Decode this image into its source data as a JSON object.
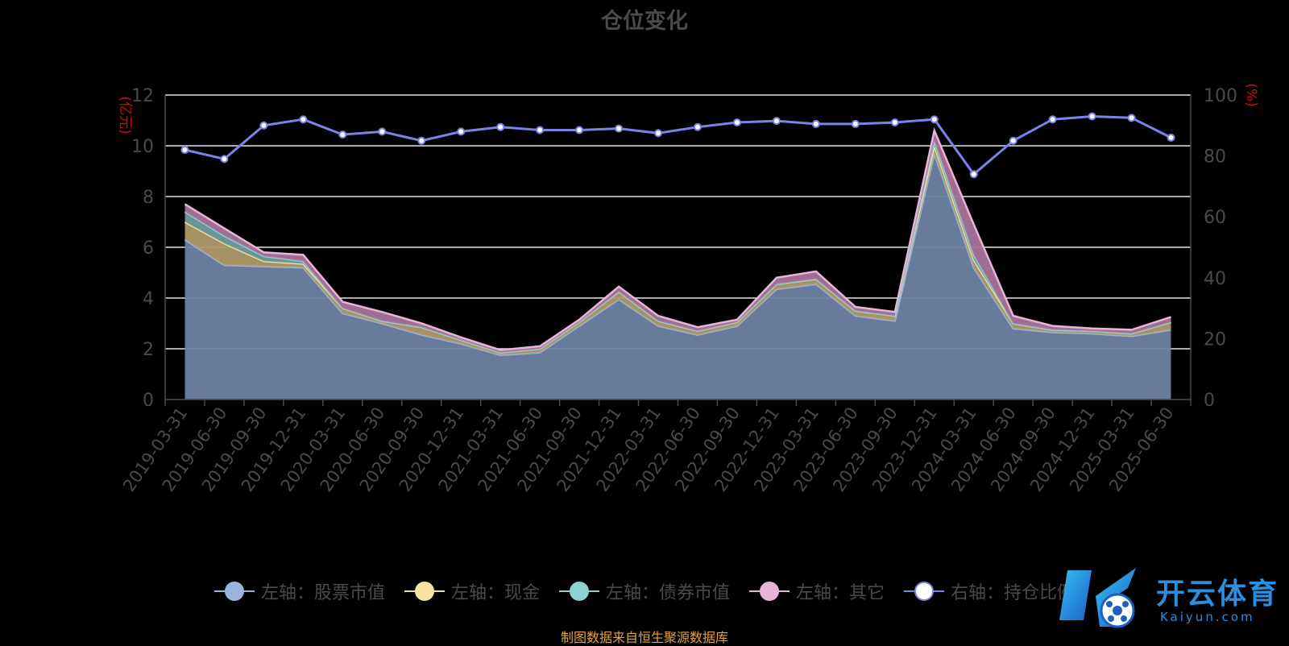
{
  "title": "仓位变化",
  "source_note": "制图数据来自恒生聚源数据库",
  "watermark": {
    "text": "开云体育",
    "sub": "Kaiyun.com",
    "logo": "K"
  },
  "chart_data": {
    "type": "area",
    "x": [
      "2019-03-31",
      "2019-06-30",
      "2019-09-30",
      "2019-12-31",
      "2020-03-31",
      "2020-06-30",
      "2020-09-30",
      "2020-12-31",
      "2021-03-31",
      "2021-06-30",
      "2021-09-30",
      "2021-12-31",
      "2022-03-31",
      "2022-06-30",
      "2022-09-30",
      "2022-12-31",
      "2023-03-31",
      "2023-06-30",
      "2023-09-30",
      "2023-12-31",
      "2024-03-31",
      "2024-06-30",
      "2024-09-30",
      "2024-12-31",
      "2025-03-31",
      "2025-06-30"
    ],
    "left_axis": {
      "label": "(亿元)",
      "ylim": [
        0,
        12
      ],
      "ticks": [
        0,
        2,
        4,
        6,
        8,
        10,
        12
      ]
    },
    "right_axis": {
      "label": "(%)",
      "ylim": [
        0,
        100
      ],
      "ticks": [
        0,
        20,
        40,
        60,
        80,
        100
      ]
    },
    "series": [
      {
        "name": "左轴：股票市值",
        "axis": "left",
        "stacked": true,
        "color": "#9ab4dc",
        "fill": "#6f82a3",
        "values": [
          6.3,
          5.3,
          5.25,
          5.2,
          3.4,
          3.0,
          2.55,
          2.2,
          1.75,
          1.85,
          2.9,
          3.95,
          2.9,
          2.55,
          2.9,
          4.35,
          4.55,
          3.3,
          3.1,
          9.7,
          5.2,
          2.8,
          2.65,
          2.6,
          2.5,
          2.75
        ]
      },
      {
        "name": "左轴：现金",
        "axis": "left",
        "stacked": true,
        "color": "#f4e3a3",
        "fill": "#b09a6a",
        "values": [
          0.7,
          0.85,
          0.2,
          0.15,
          0.2,
          0.1,
          0.3,
          0.15,
          0.1,
          0.15,
          0.15,
          0.3,
          0.2,
          0.15,
          0.15,
          0.2,
          0.2,
          0.2,
          0.2,
          0.3,
          0.3,
          0.2,
          0.1,
          0.1,
          0.1,
          0.3
        ]
      },
      {
        "name": "左轴：债券市值",
        "axis": "left",
        "stacked": true,
        "color": "#8fd0d0",
        "fill": "#6e9c9e",
        "values": [
          0.4,
          0.3,
          0.2,
          0.1,
          0.0,
          0.0,
          0.0,
          0.0,
          0.0,
          0.0,
          0.0,
          0.0,
          0.0,
          0.0,
          0.0,
          0.0,
          0.0,
          0.0,
          0.0,
          0.2,
          0.2,
          0.0,
          0.0,
          0.0,
          0.0,
          0.0
        ]
      },
      {
        "name": "左轴：其它",
        "axis": "left",
        "stacked": true,
        "color": "#e8b4d8",
        "fill": "#a8739a",
        "values": [
          0.3,
          0.3,
          0.15,
          0.25,
          0.25,
          0.35,
          0.15,
          0.1,
          0.1,
          0.1,
          0.1,
          0.2,
          0.2,
          0.15,
          0.1,
          0.25,
          0.3,
          0.15,
          0.15,
          0.4,
          1.2,
          0.3,
          0.15,
          0.1,
          0.15,
          0.2
        ]
      },
      {
        "name": "右轴：持仓比例",
        "axis": "right",
        "stacked": false,
        "color": "#7b83e8",
        "values": [
          82,
          79,
          90,
          92,
          87,
          88,
          85,
          88,
          89.5,
          88.5,
          88.5,
          89,
          87.5,
          89.5,
          91,
          91.5,
          90.5,
          90.5,
          91,
          92,
          74,
          85,
          92,
          93,
          92.5,
          86
        ]
      }
    ],
    "grid": true,
    "legend_position": "bottom"
  }
}
